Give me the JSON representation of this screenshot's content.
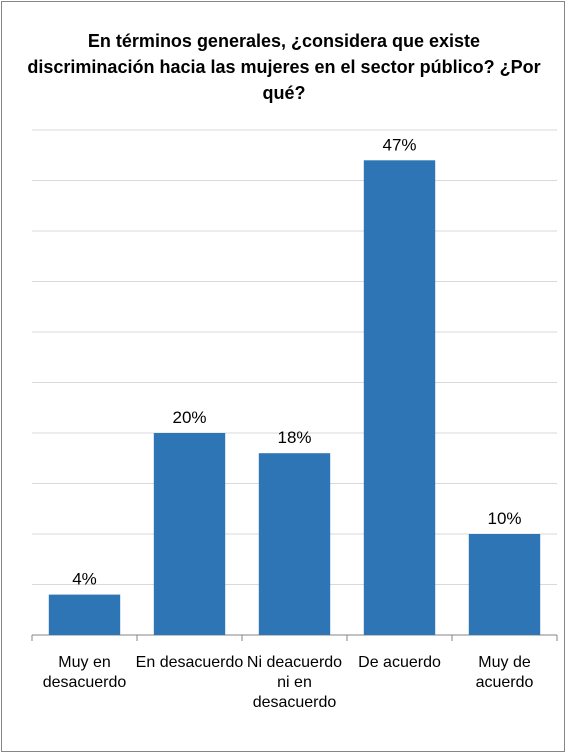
{
  "chart_data": {
    "type": "bar",
    "title": "En términos generales, ¿considera que existe discriminación hacia las mujeres en el sector público? ¿Por qué?",
    "categories": [
      "Muy en desacuerdo",
      "En desacuerdo",
      "Ni deacuerdo ni en desacuerdo",
      "De acuerdo",
      "Muy de acuerdo"
    ],
    "values": [
      4,
      20,
      18,
      47,
      10
    ],
    "data_labels": [
      "4%",
      "20%",
      "18%",
      "47%",
      "10%"
    ],
    "ylim": [
      0,
      50
    ],
    "gridlines": true,
    "legend": "none",
    "bar_color": "#2E75B6"
  }
}
